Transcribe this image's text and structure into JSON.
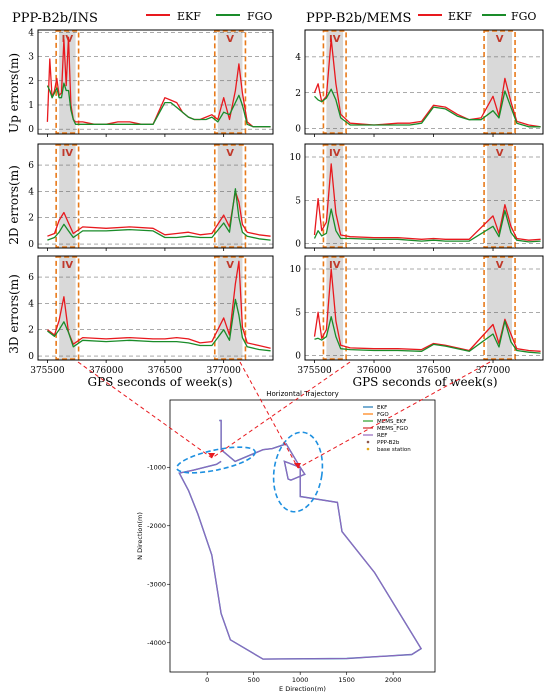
{
  "figure": {
    "left_title": "PPP-B2b/INS",
    "right_title": "PPP-B2b/MEMS",
    "legend_top": [
      "EKF",
      "FGO"
    ],
    "x_axis_label": "GPS seconds of week(s)",
    "region_labels": [
      "IV",
      "V"
    ],
    "colors": {
      "ekf": "#e8191e",
      "fgo": "#1a8c2a",
      "region": "#e87a1a",
      "shade": "#d9d9d9",
      "ellipse": "#1e90e0",
      "ref": "#9467bd"
    }
  },
  "chart_data": [
    {
      "type": "line",
      "id": "ins-up",
      "ylabel": "Up errors(m)",
      "xlim": [
        375420,
        377420
      ],
      "ylim": [
        -0.2,
        4.1
      ],
      "yticks": [
        0,
        1,
        2,
        3,
        4
      ],
      "xticks": [
        375500,
        376000,
        376500,
        377000
      ],
      "series": [
        {
          "name": "EKF",
          "x": [
            375500,
            375520,
            375540,
            375560,
            375580,
            375600,
            375620,
            375640,
            375660,
            375680,
            375700,
            375720,
            375740,
            375800,
            375900,
            376000,
            376100,
            376200,
            376300,
            376400,
            376500,
            376550,
            376600,
            376650,
            376700,
            376750,
            376800,
            376850,
            376900,
            376950,
            377000,
            377050,
            377100,
            377130,
            377160,
            377200,
            377250,
            377300,
            377400
          ],
          "y": [
            0.3,
            2.9,
            1.3,
            1.6,
            2.1,
            1.4,
            1.5,
            3.7,
            1.8,
            3.8,
            1.0,
            0.4,
            0.3,
            0.3,
            0.2,
            0.2,
            0.3,
            0.3,
            0.2,
            0.2,
            1.3,
            1.2,
            1.1,
            0.7,
            0.5,
            0.4,
            0.4,
            0.5,
            0.6,
            0.4,
            1.3,
            0.4,
            1.6,
            2.7,
            1.5,
            0.3,
            0.1,
            0.1,
            0.1
          ]
        },
        {
          "name": "FGO",
          "x": [
            375500,
            375520,
            375540,
            375560,
            375580,
            375600,
            375620,
            375640,
            375660,
            375680,
            375700,
            375720,
            375740,
            375800,
            375900,
            376000,
            376100,
            376200,
            376300,
            376400,
            376500,
            376550,
            376600,
            376650,
            376700,
            376750,
            376800,
            376850,
            376900,
            376950,
            377000,
            377050,
            377100,
            377130,
            377160,
            377200,
            377250,
            377300,
            377400
          ],
          "y": [
            1.8,
            1.6,
            1.3,
            1.5,
            1.7,
            1.3,
            1.3,
            1.9,
            1.6,
            1.6,
            0.8,
            0.4,
            0.2,
            0.2,
            0.2,
            0.2,
            0.2,
            0.2,
            0.2,
            0.2,
            1.1,
            1.1,
            0.9,
            0.7,
            0.5,
            0.4,
            0.4,
            0.4,
            0.5,
            0.3,
            0.7,
            0.6,
            1.1,
            1.4,
            1.0,
            0.2,
            0.1,
            0.1,
            0.1
          ]
        }
      ]
    },
    {
      "type": "line",
      "id": "ins-2d",
      "ylabel": "2D errors(m)",
      "xlim": [
        375420,
        377420
      ],
      "ylim": [
        -0.3,
        7.6
      ],
      "yticks": [
        0,
        2,
        4,
        6
      ],
      "xticks": [
        375500,
        376000,
        376500,
        377000
      ],
      "series": [
        {
          "name": "EKF",
          "x": [
            375500,
            375560,
            375600,
            375640,
            375680,
            375720,
            375800,
            376000,
            376200,
            376400,
            376500,
            376600,
            376700,
            376800,
            376900,
            377000,
            377050,
            377100,
            377130,
            377160,
            377200,
            377300,
            377400
          ],
          "y": [
            0.6,
            0.8,
            1.8,
            2.4,
            1.6,
            0.8,
            1.3,
            1.2,
            1.3,
            1.2,
            0.7,
            0.8,
            0.9,
            0.7,
            0.8,
            2.2,
            1.3,
            4.0,
            3.2,
            1.5,
            0.9,
            0.7,
            0.6
          ]
        },
        {
          "name": "FGO",
          "x": [
            375500,
            375560,
            375600,
            375640,
            375680,
            375720,
            375800,
            376000,
            376200,
            376400,
            376500,
            376600,
            376700,
            376800,
            376900,
            377000,
            377050,
            377100,
            377130,
            377160,
            377200,
            377300,
            377400
          ],
          "y": [
            0.3,
            0.5,
            0.9,
            1.5,
            1.0,
            0.5,
            1.0,
            1.0,
            1.1,
            1.0,
            0.5,
            0.5,
            0.6,
            0.5,
            0.5,
            1.6,
            0.9,
            4.2,
            2.0,
            0.9,
            0.6,
            0.4,
            0.3
          ]
        }
      ]
    },
    {
      "type": "line",
      "id": "ins-3d",
      "ylabel": "3D errors(m)",
      "xlim": [
        375420,
        377420
      ],
      "ylim": [
        -0.3,
        7.6
      ],
      "yticks": [
        0,
        2,
        4,
        6
      ],
      "xticks": [
        375500,
        376000,
        376500,
        377000
      ],
      "series": [
        {
          "name": "EKF",
          "x": [
            375500,
            375560,
            375600,
            375640,
            375680,
            375720,
            375800,
            376000,
            376200,
            376400,
            376500,
            376600,
            376700,
            376800,
            376900,
            377000,
            377050,
            377100,
            377130,
            377160,
            377200,
            377300,
            377400
          ],
          "y": [
            2.0,
            1.6,
            2.7,
            4.5,
            1.8,
            0.9,
            1.4,
            1.3,
            1.4,
            1.3,
            1.3,
            1.4,
            1.3,
            1.0,
            1.1,
            2.9,
            1.6,
            5.5,
            7.2,
            2.2,
            1.0,
            0.8,
            0.6
          ]
        },
        {
          "name": "FGO",
          "x": [
            375500,
            375560,
            375600,
            375640,
            375680,
            375720,
            375800,
            376000,
            376200,
            376400,
            376500,
            376600,
            376700,
            376800,
            376900,
            377000,
            377050,
            377100,
            377130,
            377160,
            377200,
            377300,
            377400
          ],
          "y": [
            1.9,
            1.5,
            2.0,
            2.6,
            1.8,
            0.7,
            1.2,
            1.1,
            1.2,
            1.1,
            1.1,
            1.1,
            1.0,
            0.8,
            0.8,
            2.0,
            1.2,
            4.3,
            3.1,
            1.4,
            0.7,
            0.5,
            0.4
          ]
        }
      ]
    },
    {
      "type": "line",
      "id": "mems-up",
      "ylabel": "",
      "xlim": [
        375420,
        377420
      ],
      "ylim": [
        -0.3,
        5.5
      ],
      "yticks": [
        0,
        2,
        4
      ],
      "xticks": [
        375500,
        376000,
        376500,
        377000
      ],
      "series": [
        {
          "name": "EKF",
          "x": [
            375500,
            375530,
            375560,
            375600,
            375640,
            375680,
            375720,
            375800,
            376000,
            376200,
            376300,
            376400,
            376500,
            376600,
            376700,
            376800,
            376900,
            377000,
            377050,
            377100,
            377150,
            377200,
            377300,
            377400
          ],
          "y": [
            2.0,
            2.5,
            1.5,
            1.8,
            5.0,
            2.5,
            0.8,
            0.3,
            0.2,
            0.3,
            0.3,
            0.4,
            1.3,
            1.2,
            0.8,
            0.5,
            0.6,
            1.8,
            0.7,
            2.8,
            1.5,
            0.4,
            0.2,
            0.1
          ]
        },
        {
          "name": "FGO",
          "x": [
            375500,
            375530,
            375560,
            375600,
            375640,
            375680,
            375720,
            375800,
            376000,
            376200,
            376300,
            376400,
            376500,
            376600,
            376700,
            376800,
            376900,
            377000,
            377050,
            377100,
            377150,
            377200,
            377300,
            377400
          ],
          "y": [
            1.8,
            1.6,
            1.5,
            1.7,
            2.2,
            1.6,
            0.6,
            0.2,
            0.2,
            0.2,
            0.2,
            0.3,
            1.2,
            1.1,
            0.7,
            0.5,
            0.5,
            1.0,
            0.6,
            2.1,
            1.2,
            0.3,
            0.1,
            0.1
          ]
        }
      ]
    },
    {
      "type": "line",
      "id": "mems-2d",
      "ylabel": "",
      "xlim": [
        375420,
        377420
      ],
      "ylim": [
        -0.5,
        11.5
      ],
      "yticks": [
        0,
        5,
        10
      ],
      "xticks": [
        375500,
        376000,
        376500,
        377000
      ],
      "series": [
        {
          "name": "EKF",
          "x": [
            375500,
            375530,
            375560,
            375600,
            375640,
            375680,
            375720,
            375800,
            376000,
            376200,
            376400,
            376500,
            376600,
            376800,
            377000,
            377050,
            377100,
            377150,
            377200,
            377300,
            377400
          ],
          "y": [
            1.0,
            5.2,
            1.5,
            2.5,
            9.2,
            3.5,
            1.0,
            0.8,
            0.7,
            0.7,
            0.5,
            0.6,
            0.5,
            0.5,
            3.2,
            1.2,
            4.5,
            2.0,
            0.6,
            0.4,
            0.5
          ]
        },
        {
          "name": "FGO",
          "x": [
            375500,
            375530,
            375560,
            375600,
            375640,
            375680,
            375720,
            375800,
            376000,
            376200,
            376400,
            376500,
            376600,
            376800,
            377000,
            377050,
            377100,
            377150,
            377200,
            377300,
            377400
          ],
          "y": [
            0.6,
            1.5,
            0.9,
            1.2,
            4.0,
            1.5,
            0.6,
            0.6,
            0.5,
            0.5,
            0.3,
            0.4,
            0.3,
            0.3,
            2.0,
            0.8,
            3.8,
            1.3,
            0.4,
            0.2,
            0.3
          ]
        }
      ]
    },
    {
      "type": "line",
      "id": "mems-3d",
      "ylabel": "",
      "xlim": [
        375420,
        377420
      ],
      "ylim": [
        -0.5,
        11.5
      ],
      "yticks": [
        0,
        5,
        10
      ],
      "xticks": [
        375500,
        376000,
        376500,
        377000
      ],
      "series": [
        {
          "name": "EKF",
          "x": [
            375500,
            375530,
            375560,
            375600,
            375640,
            375680,
            375720,
            375800,
            376000,
            376200,
            376400,
            376500,
            376600,
            376800,
            377000,
            377050,
            377100,
            377150,
            377200,
            377300,
            377400
          ],
          "y": [
            2.2,
            5.0,
            2.0,
            3.0,
            10.0,
            4.0,
            1.2,
            0.9,
            0.8,
            0.8,
            0.7,
            1.4,
            1.2,
            0.6,
            3.6,
            1.4,
            4.2,
            2.5,
            0.8,
            0.6,
            0.5
          ]
        },
        {
          "name": "FGO",
          "x": [
            375500,
            375530,
            375560,
            375600,
            375640,
            375680,
            375720,
            375800,
            376000,
            376200,
            376400,
            376500,
            376600,
            376800,
            377000,
            377050,
            377100,
            377150,
            377200,
            377300,
            377400
          ],
          "y": [
            1.9,
            2.0,
            1.8,
            2.2,
            4.5,
            2.2,
            0.8,
            0.7,
            0.6,
            0.6,
            0.5,
            1.3,
            1.1,
            0.5,
            2.5,
            1.0,
            4.0,
            1.6,
            0.6,
            0.4,
            0.3
          ]
        }
      ]
    },
    {
      "type": "line",
      "id": "trajectory",
      "title": "Horizontal Trajectory",
      "xlabel": "E Direction(m)",
      "ylabel": "N Direction(m)",
      "xlim": [
        -400,
        2450
      ],
      "ylim": [
        -4500,
        150
      ],
      "xticks": [
        0,
        500,
        1000,
        1500,
        2000
      ],
      "yticks": [
        -1000,
        -2000,
        -3000,
        -4000
      ],
      "legend": [
        "EKF",
        "FGO",
        "MEMS_EKF",
        "MEMS_FGO",
        "REF",
        "PPP-B2b",
        "base station"
      ],
      "series": [
        {
          "name": "REF",
          "x": [
            130,
            150,
            150,
            300,
            600,
            700,
            850,
            1000,
            1050,
            900,
            870,
            830,
            1000,
            1000,
            1400,
            1450,
            1800,
            2300,
            2200,
            1500,
            600,
            250,
            150,
            50,
            -100,
            -200,
            -300,
            -150,
            100,
            150
          ],
          "y": [
            -200,
            -200,
            -700,
            -900,
            -700,
            -680,
            -600,
            -1000,
            -1120,
            -1220,
            -1200,
            -900,
            -1000,
            -1500,
            -1600,
            -2100,
            -2800,
            -4100,
            -4200,
            -4270,
            -4280,
            -3950,
            -3500,
            -2500,
            -1800,
            -1400,
            -1100,
            -1050,
            -950,
            -900
          ]
        }
      ]
    }
  ]
}
